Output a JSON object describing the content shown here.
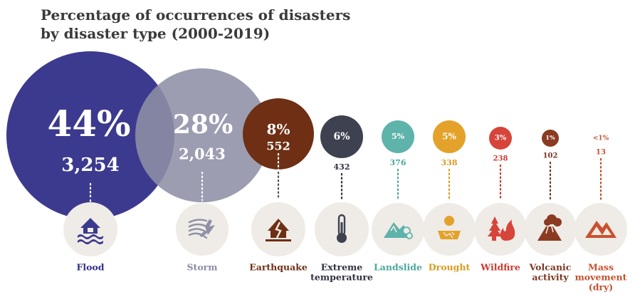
{
  "chart_data": {
    "type": "bubble",
    "title_line1": "Percentage of occurrences of disasters",
    "title_line2": "by disaster type (2000-2019)",
    "categories": [
      {
        "name": "Flood",
        "lines": [
          "Flood"
        ],
        "percent": "44%",
        "value": 3254,
        "count_label": "3,254",
        "color": "#3c3a8e",
        "label_color": "#2f2f8a",
        "icon": "flood-house-icon"
      },
      {
        "name": "Storm",
        "lines": [
          "Storm"
        ],
        "percent": "28%",
        "value": 2043,
        "count_label": "2,043",
        "color": "#8e90a6",
        "label_color": "#8a8ca3",
        "icon": "storm-wind-icon"
      },
      {
        "name": "Earthquake",
        "lines": [
          "Earthquake"
        ],
        "percent": "8%",
        "value": 552,
        "count_label": "552",
        "color": "#6e2f14",
        "label_color": "#6e2f14",
        "icon": "earthquake-house-icon"
      },
      {
        "name": "Extreme temperature",
        "lines": [
          "Extreme",
          "temperature"
        ],
        "percent": "6%",
        "value": 432,
        "count_label": "432",
        "color": "#3e4150",
        "label_color": "#2e3040",
        "icon": "thermometer-icon"
      },
      {
        "name": "Landslide",
        "lines": [
          "Landslide"
        ],
        "percent": "5%",
        "value": 376,
        "count_label": "376",
        "color": "#5eb3ab",
        "label_color": "#4aa79d",
        "icon": "landslide-icon"
      },
      {
        "name": "Drought",
        "lines": [
          "Drought"
        ],
        "percent": "5%",
        "value": 338,
        "count_label": "338",
        "color": "#e4a22a",
        "label_color": "#d99a20",
        "icon": "drought-icon"
      },
      {
        "name": "Wildfire",
        "lines": [
          "Wildfire"
        ],
        "percent": "3%",
        "value": 238,
        "count_label": "238",
        "color": "#d6443a",
        "label_color": "#c93a30",
        "icon": "wildfire-icon"
      },
      {
        "name": "Volcanic activity",
        "lines": [
          "Volcanic",
          "activity"
        ],
        "percent": "1%",
        "value": 102,
        "count_label": "102",
        "color": "#8a3b22",
        "label_color": "#7a3520",
        "icon": "volcano-icon"
      },
      {
        "name": "Mass movement (dry)",
        "lines": [
          "Mass",
          "movement",
          "(dry)"
        ],
        "percent": "<1%",
        "value": 13,
        "count_label": "13",
        "color": "#c9512e",
        "label_color": "#c4512e",
        "icon": "mountain-icon"
      }
    ]
  }
}
